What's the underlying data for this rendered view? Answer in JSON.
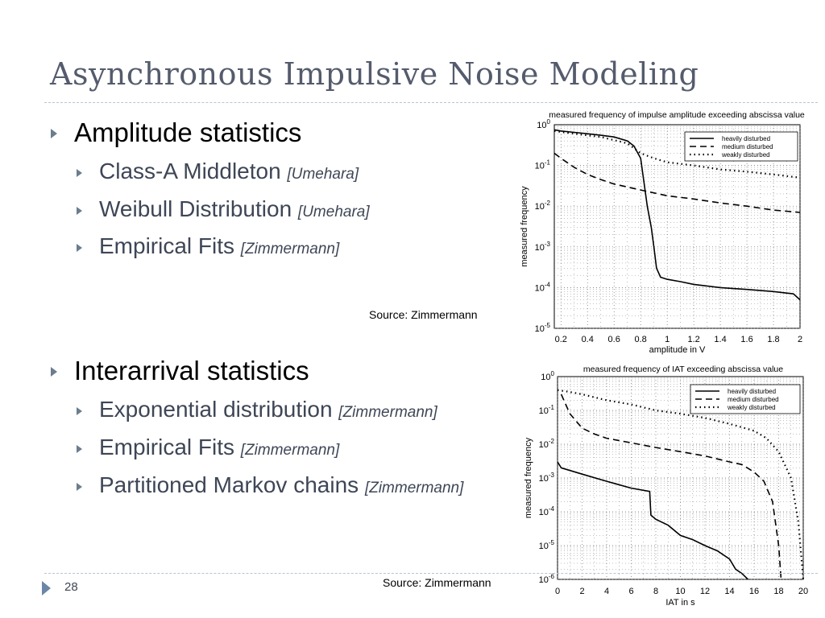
{
  "slide": {
    "title": "Asynchronous Impulsive Noise Modeling",
    "page_number": "28",
    "sections": [
      {
        "heading": "Amplitude statistics",
        "items": [
          {
            "text": "Class-A Middleton ",
            "cite": "[Umehara]"
          },
          {
            "text": "Weibull Distribution ",
            "cite": "[Umehara]"
          },
          {
            "text": "Empirical Fits ",
            "cite": "[Zimmermann]"
          }
        ]
      },
      {
        "heading": "Interarrival statistics",
        "items": [
          {
            "text": "Exponential distribution ",
            "cite": "[Zimmermann]"
          },
          {
            "text": "Empirical Fits ",
            "cite": "[Zimmermann]"
          },
          {
            "text": "Partitioned Markov chains ",
            "cite": "[Zimmermann]"
          }
        ]
      }
    ],
    "source_labels": [
      "Source: Zimmermann",
      "Source: Zimmermann"
    ]
  },
  "chart_data": [
    {
      "type": "line",
      "title": "measured frequency of impulse amplitude exceeding abscissa value",
      "xlabel": "amplitude in V",
      "ylabel": "measured frequency",
      "xlim": [
        0.15,
        2.0
      ],
      "ylim": [
        1e-05,
        1
      ],
      "y_scale": "log",
      "x_ticks": [
        "0.2",
        "0.4",
        "0.6",
        "0.8",
        "1",
        "1.2",
        "1.4",
        "1.6",
        "1.8",
        "2"
      ],
      "y_ticks": [
        "10^0",
        "10^-1",
        "10^-2",
        "10^-3",
        "10^-4",
        "10^-5"
      ],
      "grid": true,
      "legend": "top-right",
      "series": [
        {
          "name": "heavily disturbed",
          "style": "solid",
          "x": [
            0.15,
            0.2,
            0.3,
            0.4,
            0.5,
            0.6,
            0.7,
            0.75,
            0.8,
            0.85,
            0.88,
            0.9,
            0.92,
            0.95,
            1.0,
            1.1,
            1.2,
            1.4,
            1.6,
            1.8,
            1.95,
            2.0
          ],
          "y": [
            0.75,
            0.7,
            0.65,
            0.6,
            0.55,
            0.5,
            0.4,
            0.3,
            0.15,
            0.01,
            0.003,
            0.001,
            0.0003,
            0.00018,
            0.00016,
            0.00014,
            0.00012,
            0.0001,
            9e-05,
            8e-05,
            7e-05,
            5e-05
          ]
        },
        {
          "name": "medium disturbed",
          "style": "dashed",
          "x": [
            0.15,
            0.2,
            0.3,
            0.4,
            0.5,
            0.6,
            0.8,
            1.0,
            1.2,
            1.4,
            1.6,
            1.8,
            1.9,
            2.0
          ],
          "y": [
            0.2,
            0.15,
            0.09,
            0.06,
            0.045,
            0.035,
            0.025,
            0.018,
            0.015,
            0.012,
            0.01,
            0.008,
            0.0075,
            0.007
          ]
        },
        {
          "name": "weakly disturbed",
          "style": "dotted",
          "x": [
            0.15,
            0.3,
            0.5,
            0.7,
            0.8,
            0.9,
            1.0,
            1.2,
            1.4,
            1.6,
            1.8,
            2.0
          ],
          "y": [
            0.7,
            0.6,
            0.5,
            0.35,
            0.2,
            0.15,
            0.12,
            0.1,
            0.08,
            0.07,
            0.06,
            0.05
          ]
        }
      ]
    },
    {
      "type": "line",
      "title": "measured frequency of IAT exceeding abscissa value",
      "xlabel": "IAT in s",
      "ylabel": "measured frequency",
      "xlim": [
        0,
        20
      ],
      "ylim": [
        1e-06,
        1
      ],
      "y_scale": "log",
      "x_ticks": [
        "0",
        "2",
        "4",
        "6",
        "8",
        "10",
        "12",
        "14",
        "16",
        "18",
        "20"
      ],
      "y_ticks": [
        "10^0",
        "10^-1",
        "10^-2",
        "10^-3",
        "10^-4",
        "10^-5",
        "10^-6"
      ],
      "grid": true,
      "legend": "top-right",
      "series": [
        {
          "name": "heavily disturbed",
          "style": "solid",
          "x": [
            0,
            0.3,
            2,
            4,
            6,
            7.5,
            7.6,
            8,
            9,
            10,
            11,
            12,
            13,
            14,
            14.5,
            15,
            15.5
          ],
          "y": [
            0.003,
            0.002,
            0.0013,
            0.0008,
            0.0005,
            0.0004,
            8e-05,
            6e-05,
            4e-05,
            2e-05,
            1.5e-05,
            1e-05,
            7e-06,
            4e-06,
            2e-06,
            1.5e-06,
            1e-06
          ]
        },
        {
          "name": "medium disturbed",
          "style": "dashed",
          "x": [
            0.3,
            1,
            2,
            3,
            4,
            6,
            8,
            10,
            12,
            14,
            15,
            16,
            16.8,
            17.5,
            18,
            18.2
          ],
          "y": [
            0.3,
            0.08,
            0.03,
            0.02,
            0.015,
            0.011,
            0.008,
            0.006,
            0.0045,
            0.003,
            0.0025,
            0.0015,
            0.0008,
            0.0002,
            1e-05,
            1e-06
          ]
        },
        {
          "name": "weakly disturbed",
          "style": "dotted",
          "x": [
            0,
            1,
            2,
            4,
            6,
            8,
            10,
            12,
            14,
            16,
            17,
            18,
            19,
            19.6,
            20
          ],
          "y": [
            0.4,
            0.35,
            0.3,
            0.2,
            0.15,
            0.1,
            0.08,
            0.06,
            0.04,
            0.025,
            0.015,
            0.006,
            0.001,
            5e-05,
            1e-06
          ]
        }
      ]
    }
  ]
}
